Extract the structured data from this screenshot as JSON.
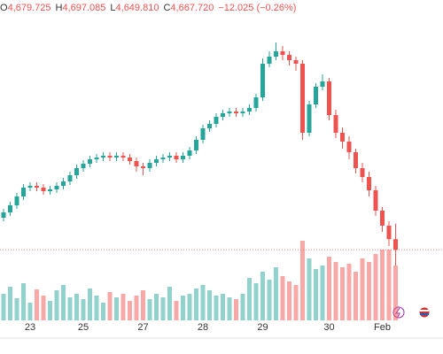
{
  "chart_data": {
    "type": "candlestick",
    "header": [
      {
        "label": "O",
        "value": "4,679.725"
      },
      {
        "label": "H",
        "value": "4,697.085"
      },
      {
        "label": "L",
        "value": "4,649.810"
      },
      {
        "label": "C",
        "value": "4,667.720"
      }
    ],
    "change": "−12.025 (−0.26%)",
    "categories": [
      null,
      null,
      null,
      null,
      "23",
      null,
      null,
      null,
      null,
      null,
      null,
      null,
      "25",
      null,
      null,
      null,
      null,
      null,
      null,
      null,
      null,
      "27",
      null,
      null,
      null,
      null,
      null,
      null,
      null,
      null,
      "28",
      null,
      null,
      null,
      null,
      null,
      null,
      null,
      null,
      "29",
      null,
      null,
      null,
      null,
      null,
      null,
      null,
      null,
      null,
      "30",
      null,
      null,
      null,
      null,
      null,
      null,
      null,
      "Feb",
      null,
      null
    ],
    "open": [
      4704,
      4710,
      4718,
      4728,
      4738,
      4740,
      4738,
      4734,
      4736,
      4740,
      4745,
      4752,
      4760,
      4765,
      4770,
      4772,
      4774,
      4772,
      4774,
      4772,
      4768,
      4762,
      4760,
      4766,
      4770,
      4772,
      4774,
      4770,
      4774,
      4780,
      4792,
      4805,
      4810,
      4818,
      4822,
      4824,
      4822,
      4824,
      4828,
      4840,
      4878,
      4886,
      4892,
      4888,
      4882,
      4878,
      4800,
      4832,
      4852,
      4858,
      4820,
      4800,
      4790,
      4778,
      4760,
      4750,
      4735,
      4712,
      4695,
      4679.725
    ],
    "high": [
      4714,
      4722,
      4732,
      4742,
      4744,
      4744,
      4742,
      4740,
      4744,
      4749,
      4756,
      4764,
      4769,
      4774,
      4776,
      4778,
      4778,
      4778,
      4778,
      4776,
      4772,
      4766,
      4770,
      4774,
      4776,
      4778,
      4778,
      4778,
      4784,
      4796,
      4809,
      4814,
      4822,
      4826,
      4828,
      4828,
      4828,
      4832,
      4844,
      4884,
      4892,
      4902,
      4898,
      4892,
      4886,
      4882,
      4836,
      4856,
      4866,
      4862,
      4826,
      4806,
      4796,
      4782,
      4766,
      4756,
      4740,
      4716,
      4700,
      4697.085
    ],
    "low": [
      4700,
      4706,
      4714,
      4724,
      4734,
      4734,
      4730,
      4730,
      4732,
      4736,
      4741,
      4748,
      4756,
      4761,
      4766,
      4768,
      4768,
      4768,
      4768,
      4764,
      4756,
      4752,
      4756,
      4762,
      4766,
      4768,
      4766,
      4766,
      4770,
      4776,
      4788,
      4801,
      4806,
      4814,
      4818,
      4818,
      4818,
      4820,
      4824,
      4836,
      4874,
      4882,
      4882,
      4876,
      4870,
      4792,
      4796,
      4828,
      4848,
      4814,
      4794,
      4782,
      4770,
      4754,
      4744,
      4728,
      4706,
      4688,
      4672,
      4649.81
    ],
    "close": [
      4710,
      4718,
      4728,
      4738,
      4740,
      4738,
      4734,
      4736,
      4740,
      4745,
      4752,
      4760,
      4765,
      4770,
      4772,
      4774,
      4772,
      4774,
      4772,
      4768,
      4762,
      4760,
      4766,
      4770,
      4772,
      4774,
      4770,
      4774,
      4780,
      4792,
      4805,
      4810,
      4818,
      4822,
      4824,
      4822,
      4824,
      4828,
      4840,
      4878,
      4886,
      4892,
      4888,
      4882,
      4878,
      4800,
      4832,
      4852,
      4858,
      4820,
      4800,
      4790,
      4778,
      4760,
      4750,
      4735,
      4712,
      4695,
      4679.725,
      4667.72
    ],
    "volume": [
      30,
      38,
      25,
      42,
      20,
      35,
      28,
      22,
      34,
      40,
      26,
      30,
      24,
      36,
      28,
      20,
      32,
      26,
      30,
      22,
      28,
      34,
      24,
      30,
      26,
      38,
      22,
      28,
      30,
      36,
      40,
      34,
      28,
      30,
      26,
      24,
      30,
      48,
      42,
      55,
      46,
      60,
      50,
      44,
      40,
      90,
      70,
      58,
      62,
      72,
      66,
      60,
      64,
      55,
      70,
      66,
      75,
      80,
      80,
      62
    ],
    "ylim": [
      4600,
      4950
    ],
    "vlim": [
      0,
      100
    ],
    "up_color": "#26a69a",
    "down_color": "#ef5350"
  }
}
